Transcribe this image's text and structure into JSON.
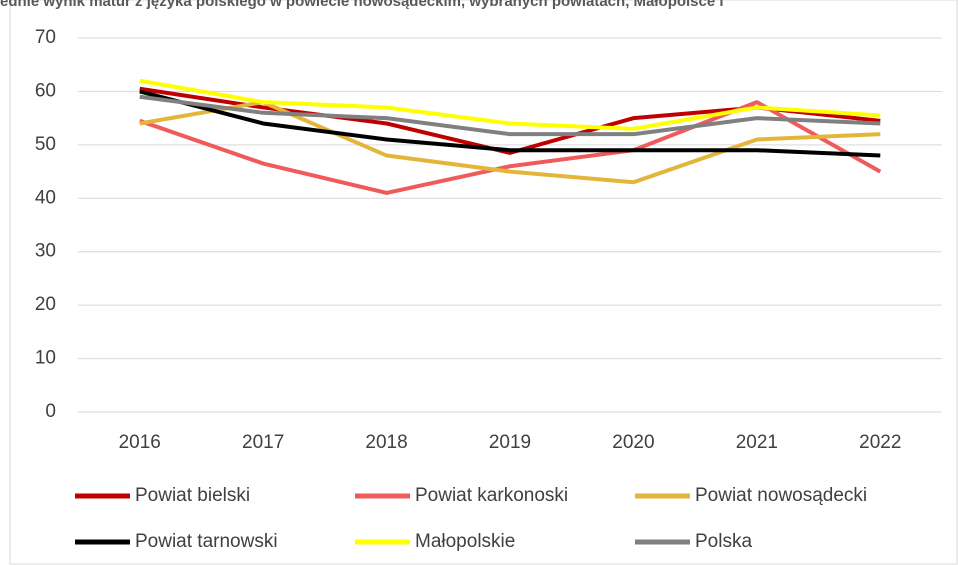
{
  "chart_data": {
    "type": "line",
    "title": "ednie wynik matur z języka polskiego w powiecie nowosądeckim, wybranych powiatach, Małopolsce i",
    "categories": [
      "2016",
      "2017",
      "2018",
      "2019",
      "2020",
      "2021",
      "2022"
    ],
    "series": [
      {
        "name": "Powiat bielski",
        "color": "#c00000",
        "values": [
          60.5,
          57,
          54,
          48.5,
          55,
          57,
          54.5
        ]
      },
      {
        "name": "Powiat karkonoski",
        "color": "#ef5b5b",
        "values": [
          54.5,
          46.5,
          41,
          46,
          49,
          58,
          45
        ]
      },
      {
        "name": "Powiat nowosądecki",
        "color": "#e3b53a",
        "values": [
          54,
          58,
          48,
          45,
          43,
          51,
          52
        ]
      },
      {
        "name": "Powiat tarnowski",
        "color": "#000000",
        "values": [
          60,
          54,
          51,
          49,
          49,
          49,
          48
        ]
      },
      {
        "name": "Małopolskie",
        "color": "#ffff00",
        "values": [
          62,
          58,
          57,
          54,
          53,
          57,
          55.5
        ]
      },
      {
        "name": "Polska",
        "color": "#808080",
        "values": [
          59,
          56,
          55,
          52,
          52,
          55,
          54
        ]
      }
    ],
    "ylim": [
      0,
      70
    ],
    "yticks": [
      0,
      10,
      20,
      30,
      40,
      50,
      60,
      70
    ],
    "grid": true,
    "legend": "bottom"
  }
}
